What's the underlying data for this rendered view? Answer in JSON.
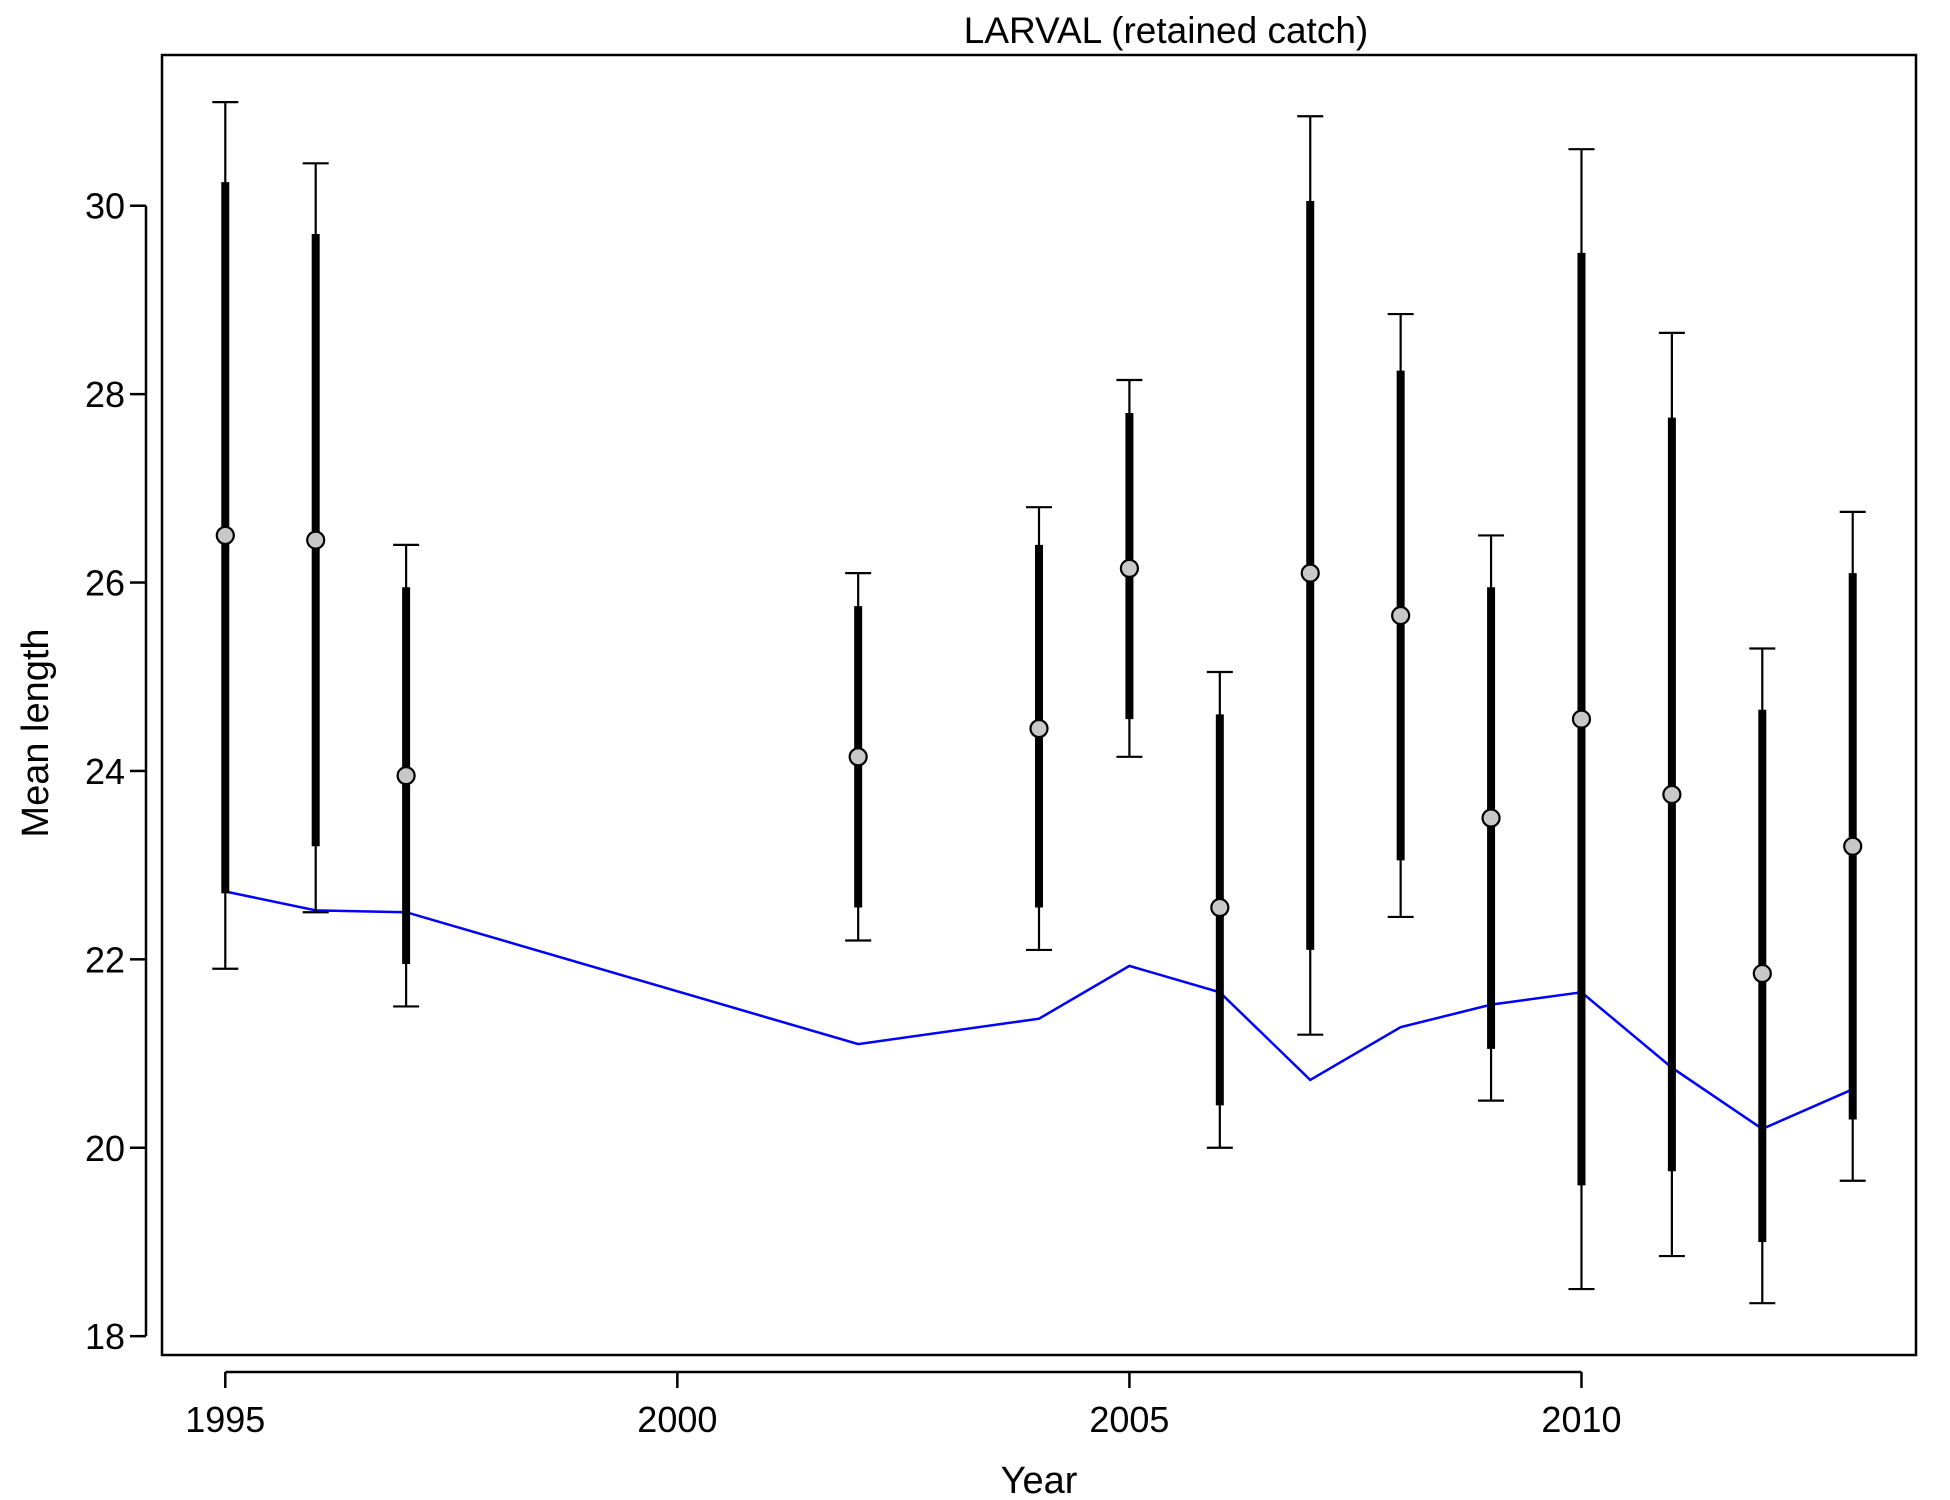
{
  "chart_data": {
    "type": "scatter",
    "title": "LARVAL (retained catch)",
    "xlabel": "Year",
    "ylabel": "Mean length",
    "xlim": [
      1994.3,
      2013.7
    ],
    "ylim": [
      17.8,
      31.6
    ],
    "x_ticks": [
      1995,
      2000,
      2005,
      2010
    ],
    "x_tick_labels": [
      "1995",
      "2000",
      "2005",
      "2010"
    ],
    "y_ticks": [
      18,
      20,
      22,
      24,
      26,
      28,
      30
    ],
    "y_tick_labels": [
      "18",
      "20",
      "22",
      "24",
      "26",
      "28",
      "30"
    ],
    "grid": false,
    "legend": "none",
    "colors": {
      "observed_marker_fill": "#c8c8c8",
      "observed_marker_stroke": "#000000",
      "interval": "#000000",
      "expected_line": "#0000ff"
    },
    "series": [
      {
        "type": "scatter",
        "role": "observed mean with inner and outer intervals",
        "points": [
          {
            "x": 1995,
            "y": 26.5,
            "inner_low": 22.7,
            "inner_high": 30.25,
            "outer_low": 21.9,
            "outer_high": 31.1
          },
          {
            "x": 1996,
            "y": 26.45,
            "inner_low": 23.2,
            "inner_high": 29.7,
            "outer_low": 22.5,
            "outer_high": 30.45
          },
          {
            "x": 1997,
            "y": 23.95,
            "inner_low": 21.95,
            "inner_high": 25.95,
            "outer_low": 21.5,
            "outer_high": 26.4
          },
          {
            "x": 2002,
            "y": 24.15,
            "inner_low": 22.55,
            "inner_high": 25.75,
            "outer_low": 22.2,
            "outer_high": 26.1
          },
          {
            "x": 2004,
            "y": 24.45,
            "inner_low": 22.55,
            "inner_high": 26.4,
            "outer_low": 22.1,
            "outer_high": 26.8
          },
          {
            "x": 2005,
            "y": 26.15,
            "inner_low": 24.55,
            "inner_high": 27.8,
            "outer_low": 24.15,
            "outer_high": 28.15
          },
          {
            "x": 2006,
            "y": 22.55,
            "inner_low": 20.45,
            "inner_high": 24.6,
            "outer_low": 20.0,
            "outer_high": 25.05
          },
          {
            "x": 2007,
            "y": 26.1,
            "inner_low": 22.1,
            "inner_high": 30.05,
            "outer_low": 21.2,
            "outer_high": 30.95
          },
          {
            "x": 2008,
            "y": 25.65,
            "inner_low": 23.05,
            "inner_high": 28.25,
            "outer_low": 22.45,
            "outer_high": 28.85
          },
          {
            "x": 2009,
            "y": 23.5,
            "inner_low": 21.05,
            "inner_high": 25.95,
            "outer_low": 20.5,
            "outer_high": 26.5
          },
          {
            "x": 2010,
            "y": 24.55,
            "inner_low": 19.6,
            "inner_high": 29.5,
            "outer_low": 18.5,
            "outer_high": 30.6
          },
          {
            "x": 2011,
            "y": 23.75,
            "inner_low": 19.75,
            "inner_high": 27.75,
            "outer_low": 18.85,
            "outer_high": 28.65
          },
          {
            "x": 2012,
            "y": 21.85,
            "inner_low": 19.0,
            "inner_high": 24.65,
            "outer_low": 18.35,
            "outer_high": 25.3
          },
          {
            "x": 2013,
            "y": 23.2,
            "inner_low": 20.3,
            "inner_high": 26.1,
            "outer_low": 19.65,
            "outer_high": 26.75
          }
        ]
      },
      {
        "type": "line",
        "role": "expected",
        "x": [
          1995,
          1996,
          1997,
          2002,
          2004,
          2005,
          2006,
          2007,
          2008,
          2009,
          2010,
          2011,
          2012,
          2013
        ],
        "values": [
          22.72,
          22.52,
          22.5,
          21.1,
          21.37,
          21.93,
          21.65,
          20.72,
          21.28,
          21.52,
          21.65,
          20.85,
          20.2,
          20.62
        ]
      }
    ]
  }
}
